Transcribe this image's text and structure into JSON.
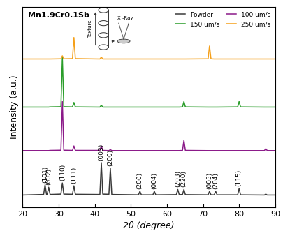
{
  "chart_data": {
    "type": "line",
    "title": "Mn1.9Cr0.1Sb",
    "x_label": "2θ (degree)",
    "y_label": "Intensity (a.u.)",
    "x": [
      20,
      25.8,
      26.2,
      26.6,
      26.8,
      27.2,
      27.6,
      30.6,
      31.0,
      31.4,
      33.8,
      34.2,
      34.6,
      41.4,
      41.8,
      42.2,
      43.9,
      44.3,
      44.7,
      52.1,
      52.5,
      52.9,
      56.1,
      56.5,
      56.9,
      62.6,
      63.0,
      63.4,
      64.3,
      64.7,
      65.1,
      71.4,
      71.8,
      72.2,
      73.1,
      73.5,
      73.9,
      79.6,
      80.0,
      80.4,
      87.0,
      87.4,
      87.8,
      90
    ],
    "series": [
      {
        "name": "Powder",
        "color": "#3a3a3a",
        "values": [
          6.5,
          6.8,
          12,
          6.9,
          6.9,
          10.7,
          6.8,
          7.0,
          13,
          7.0,
          6.9,
          11.5,
          6.9,
          6.8,
          24,
          7.0,
          6.9,
          21,
          6.8,
          6.6,
          8.5,
          6.6,
          6.6,
          8.5,
          6.6,
          6.7,
          9.5,
          6.7,
          6.8,
          9.5,
          6.7,
          6.6,
          8.5,
          6.6,
          6.6,
          8.5,
          6.6,
          6.6,
          10,
          6.6,
          6.5,
          7,
          6.5,
          6.5
        ]
      },
      {
        "name": "100 um/s",
        "color": "#8b1a89",
        "values": [
          30.5,
          30.5,
          30.5,
          30.5,
          30.5,
          30.5,
          30.6,
          30.7,
          57,
          30.7,
          30.6,
          33,
          30.6,
          30.6,
          33,
          30.6,
          30.5,
          31,
          30.5,
          30.5,
          30.5,
          30.5,
          30.5,
          30.5,
          30.5,
          30.5,
          30.5,
          30.5,
          30.6,
          36,
          30.6,
          30.5,
          30.5,
          30.5,
          30.5,
          30.5,
          30.5,
          30.5,
          30.5,
          30.5,
          30.5,
          31.5,
          30.5,
          30.5
        ]
      },
      {
        "name": "150 um/s",
        "color": "#2a9d2a",
        "values": [
          54,
          54,
          54,
          54,
          54,
          54,
          54.1,
          54.2,
          81,
          54.2,
          54.1,
          56.5,
          54.1,
          54,
          55,
          54,
          54,
          54,
          54,
          54,
          54,
          54,
          54,
          54,
          54,
          54,
          54,
          54,
          54.1,
          57,
          54.1,
          54,
          54,
          54,
          54,
          54,
          54,
          54.1,
          57,
          54.1,
          54,
          54,
          54,
          54
        ]
      },
      {
        "name": "250 um/s",
        "color": "#f5a01a",
        "values": [
          80,
          80,
          80,
          80,
          80,
          80,
          80,
          80.1,
          81.7,
          80.1,
          80.2,
          91.6,
          80.2,
          80,
          81,
          80,
          80,
          80,
          80,
          80,
          80,
          80,
          80,
          80,
          80,
          80,
          80,
          80,
          80,
          80,
          80,
          80.1,
          87,
          80.1,
          80,
          80,
          80,
          80,
          80,
          80,
          80,
          80,
          80,
          80
        ]
      }
    ],
    "xlim": [
      20,
      90
    ],
    "ylim": [
      0,
      108
    ],
    "xticks": [
      20,
      30,
      40,
      50,
      60,
      70,
      80,
      90
    ],
    "yticks": [],
    "tick_labels": "x",
    "legend": "upper right",
    "grid": false,
    "peak_labels": [
      {
        "text": "(101)",
        "x": 26.2
      },
      {
        "text": "(002)",
        "x": 27.2
      },
      {
        "text": "(110)",
        "x": 31.0
      },
      {
        "text": "(111)",
        "x": 34.2
      },
      {
        "text": "(003)",
        "x": 41.8
      },
      {
        "text": "(200)",
        "x": 44.3
      },
      {
        "text": "(200)",
        "x": 52.5
      },
      {
        "text": "(004)",
        "x": 56.5
      },
      {
        "text": "(203)",
        "x": 63.0
      },
      {
        "text": "(220)",
        "x": 64.7
      },
      {
        "text": "(005)",
        "x": 71.8
      },
      {
        "text": "(204)",
        "x": 73.5
      },
      {
        "text": "(115)",
        "x": 80.0
      }
    ],
    "inset_labels": {
      "vertical": "Texture",
      "beam": "X -Ray"
    }
  }
}
